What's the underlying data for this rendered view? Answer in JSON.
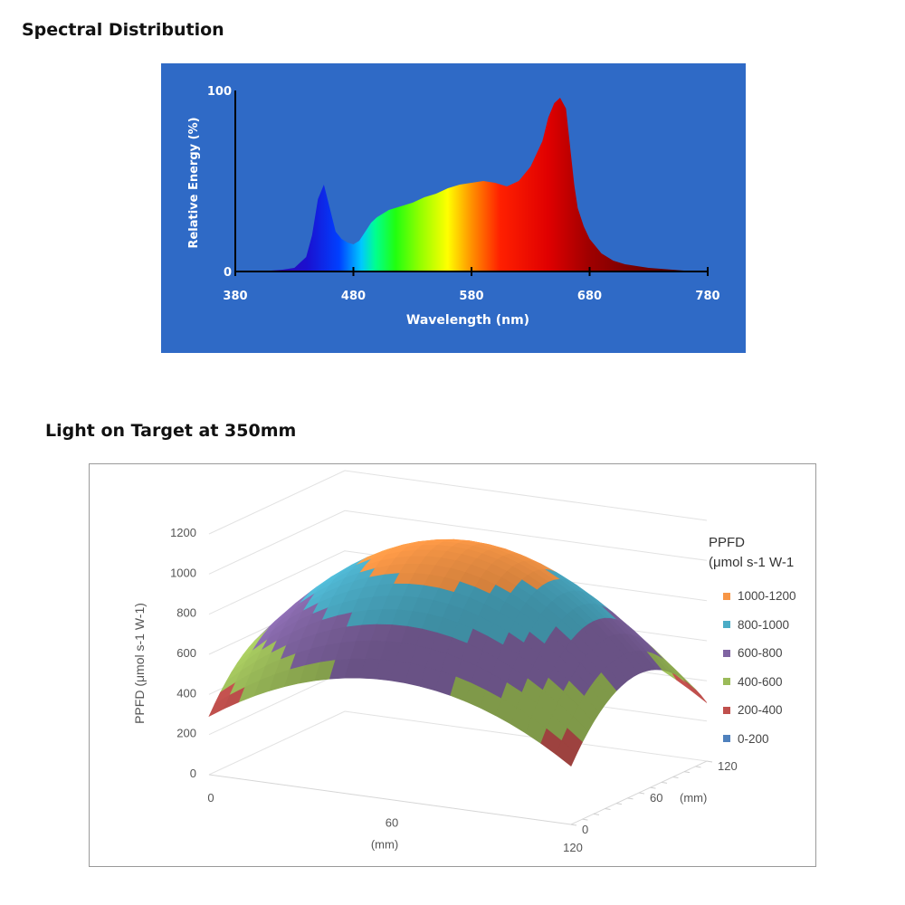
{
  "spectral": {
    "heading": "Spectral Distribution"
  },
  "ppfd": {
    "heading": "Light on Target at 350mm"
  },
  "chart_data": [
    {
      "type": "area",
      "xlabel": "Wavelength (nm)",
      "ylabel": "Relative Energy (%)",
      "xlim": [
        380,
        780
      ],
      "ylim": [
        0,
        100
      ],
      "xticks": [
        380,
        480,
        580,
        680,
        780
      ],
      "yticks": [
        0,
        100
      ],
      "grid": false,
      "fill": "visible-spectrum gradient",
      "x": [
        410,
        420,
        430,
        440,
        445,
        450,
        455,
        460,
        465,
        470,
        475,
        480,
        485,
        490,
        495,
        500,
        510,
        520,
        530,
        540,
        550,
        560,
        570,
        580,
        590,
        600,
        610,
        620,
        630,
        640,
        645,
        650,
        655,
        660,
        663,
        667,
        670,
        675,
        680,
        690,
        700,
        710,
        720,
        730,
        740,
        750,
        760,
        770,
        780
      ],
      "y": [
        0.5,
        1,
        2,
        8,
        20,
        40,
        48,
        35,
        22,
        18,
        16,
        15,
        17,
        22,
        27,
        30,
        34,
        36,
        38,
        41,
        43,
        46,
        48,
        49,
        50,
        49,
        47,
        50,
        58,
        72,
        85,
        93,
        96,
        90,
        72,
        48,
        35,
        25,
        18,
        10,
        6,
        4,
        3,
        2,
        1.5,
        1,
        0.5,
        0.3,
        0
      ]
    },
    {
      "type": "surface",
      "ylabel": "PPFD (μmol s-1 W-1)",
      "x_axis_label": "(mm)",
      "depth_axis_label": "(mm)",
      "zlim": [
        0,
        1200
      ],
      "zticks": [
        0,
        200,
        400,
        600,
        800,
        1000,
        1200
      ],
      "xticks": [
        0,
        60,
        120
      ],
      "depth_ticks": [
        0,
        60,
        120
      ],
      "grid": true,
      "legend_position": "right",
      "legend_title": "PPFD\n(μmol s-1 W-1",
      "x": [
        0,
        20,
        40,
        60,
        80,
        100,
        120
      ],
      "depth": [
        0,
        20,
        40,
        60,
        80,
        100,
        120
      ],
      "z": [
        [
          250,
          370,
          460,
          490,
          460,
          370,
          250
        ],
        [
          370,
          560,
          700,
          760,
          700,
          560,
          370
        ],
        [
          460,
          700,
          900,
          1010,
          900,
          700,
          460
        ],
        [
          490,
          760,
          1010,
          1120,
          1010,
          760,
          490
        ],
        [
          460,
          700,
          900,
          1010,
          900,
          700,
          460
        ],
        [
          370,
          560,
          700,
          760,
          700,
          560,
          370
        ],
        [
          250,
          370,
          460,
          490,
          460,
          370,
          250
        ]
      ],
      "series": [
        {
          "name": "1000-1200",
          "range": [
            1000,
            1200
          ],
          "color": "#f79646"
        },
        {
          "name": "800-1000",
          "range": [
            800,
            1000
          ],
          "color": "#4bacc6"
        },
        {
          "name": "600-800",
          "range": [
            600,
            800
          ],
          "color": "#8064a2"
        },
        {
          "name": "400-600",
          "range": [
            400,
            600
          ],
          "color": "#9bbb59"
        },
        {
          "name": "200-400",
          "range": [
            200,
            400
          ],
          "color": "#c0504d"
        },
        {
          "name": "0-200",
          "range": [
            0,
            200
          ],
          "color": "#4f81bd"
        }
      ]
    }
  ]
}
